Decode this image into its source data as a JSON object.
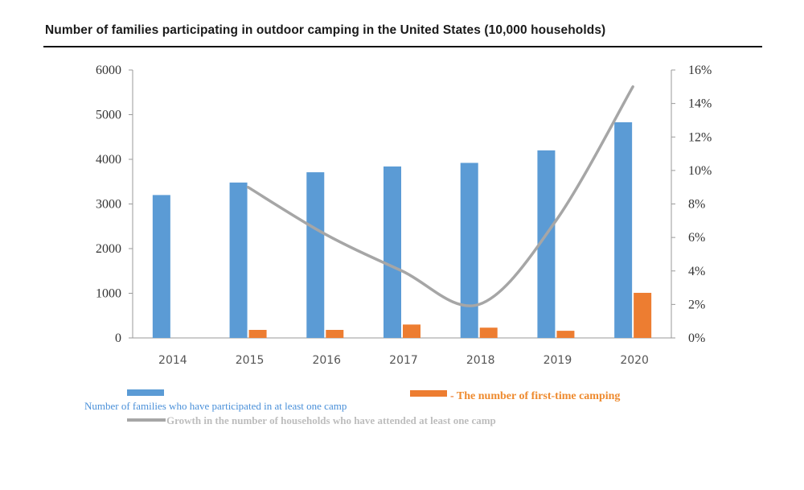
{
  "chart_data": {
    "type": "bar",
    "title": "Number of families participating in outdoor camping in the United States (10,000 households)",
    "categories": [
      "2014",
      "2015",
      "2016",
      "2017",
      "2018",
      "2019",
      "2020"
    ],
    "series": [
      {
        "name": "Number of families who have participated in at least one camp",
        "type": "bar",
        "axis": "left",
        "color": "#5b9bd5",
        "values": [
          3200,
          3480,
          3710,
          3840,
          3920,
          4200,
          4830
        ]
      },
      {
        "name": "The number of first-time camping",
        "type": "bar",
        "axis": "left",
        "color": "#ed7d31",
        "values": [
          null,
          180,
          180,
          300,
          230,
          160,
          1010
        ]
      },
      {
        "name": "Growth in the number of households who have attended at least one camp",
        "type": "line",
        "axis": "right",
        "color": "#a6a6a6",
        "values": [
          null,
          0.09,
          0.062,
          0.04,
          0.02,
          0.07,
          0.15
        ]
      }
    ],
    "y_left": {
      "min": 0,
      "max": 6000,
      "ticks": [
        "0",
        "1000",
        "2000",
        "3000",
        "4000",
        "5000",
        "6000"
      ]
    },
    "y_right": {
      "min": 0,
      "max": 0.16,
      "ticks": [
        "0%",
        "2%",
        "4%",
        "6%",
        "8%",
        "10%",
        "12%",
        "14%",
        "16%"
      ]
    },
    "legend": {
      "placement": "bottom",
      "blue_label": "Number of families who have participated in at least one camp",
      "orange_label": "The number of first-time camping",
      "gray_label": "Growth in the number of households who have attended at least one camp"
    },
    "grid": false
  }
}
